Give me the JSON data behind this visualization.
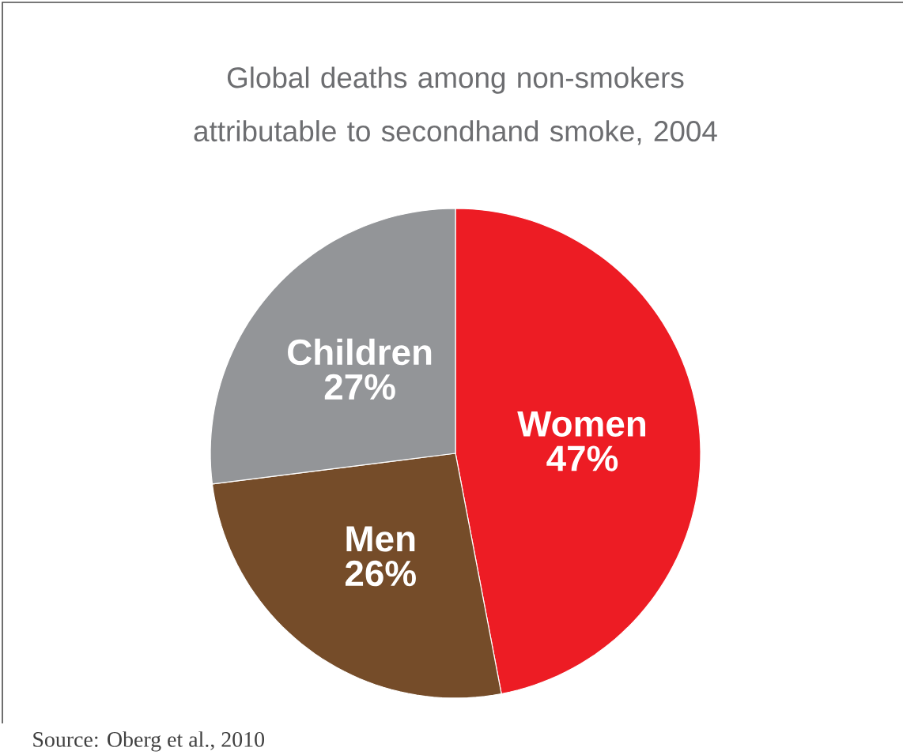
{
  "chart_data": {
    "type": "pie",
    "title": "Global deaths among non-smokers attributable to secondhand smoke, 2004",
    "categories": [
      "Women",
      "Men",
      "Children"
    ],
    "values": [
      47,
      26,
      27
    ],
    "colors": [
      "#ed1c24",
      "#754c29",
      "#939598"
    ],
    "value_labels": [
      "47%",
      "26%",
      "27%"
    ],
    "annotations": [
      "Source: Oberg et al., 2010"
    ]
  }
}
